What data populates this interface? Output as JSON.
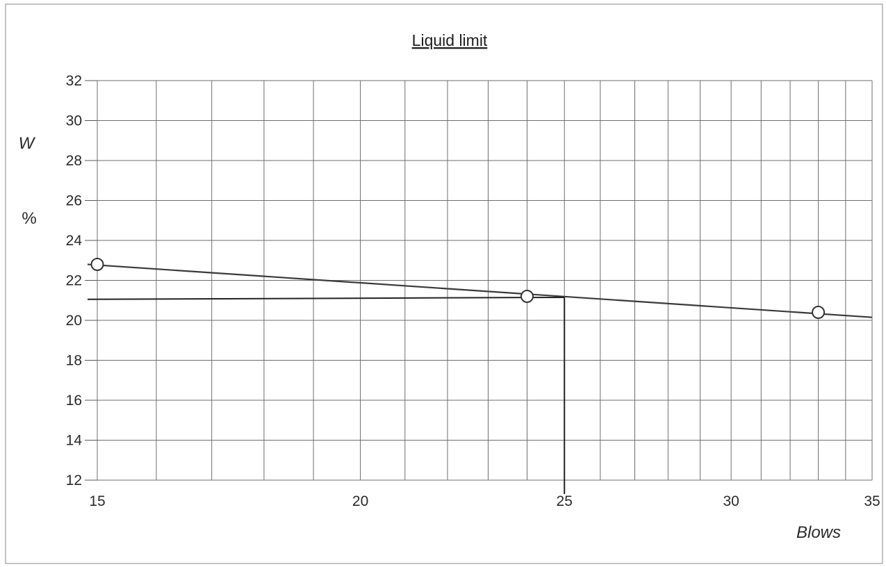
{
  "chart_data": {
    "type": "scatter",
    "title": "Liquid limit",
    "ylabel_top": "W",
    "ylabel_unit": "%",
    "xlabel": "Blows",
    "xlim": [
      15,
      35
    ],
    "ylim": [
      12,
      32
    ],
    "x_ticks": [
      15,
      20,
      25,
      30,
      35
    ],
    "y_ticks": [
      12,
      14,
      16,
      18,
      20,
      22,
      24,
      26,
      28,
      30,
      32
    ],
    "x_grid_scale": "log",
    "grid": true,
    "series": [
      {
        "points": [
          {
            "x": 15,
            "y": 22.8
          },
          {
            "x": 24,
            "y": 21.2
          },
          {
            "x": 33,
            "y": 20.4
          }
        ]
      }
    ],
    "trend_line": {
      "x": [
        15,
        35
      ],
      "y": [
        22.8,
        20.15
      ]
    },
    "reading_at_25_blows": {
      "x": 25,
      "y": 21.15
    }
  },
  "colors": {
    "grid": "#6e6e6e",
    "frame": "#9a9a9a",
    "line": "#3a3a3a",
    "marker_fill": "#ffffff"
  }
}
